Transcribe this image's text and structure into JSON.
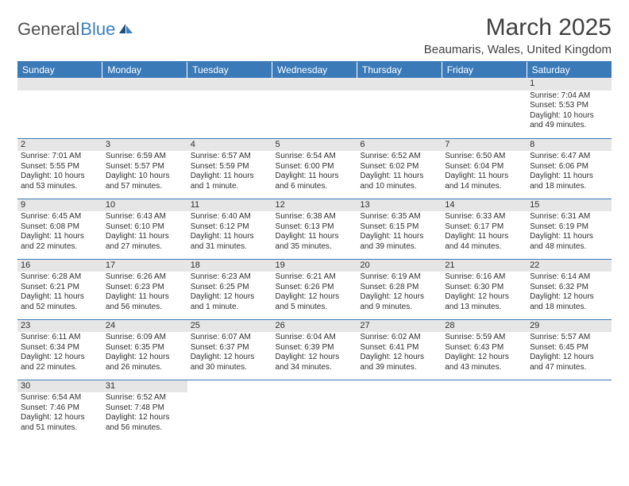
{
  "logo": {
    "part1": "General",
    "part2": "Blue"
  },
  "title": "March 2025",
  "location": "Beaumaris, Wales, United Kingdom",
  "colors": {
    "header_bg": "#3a7ab8",
    "header_text": "#ffffff",
    "daynum_bg": "#e6e6e6",
    "text": "#303030",
    "rule": "#3a7ab8",
    "logo_gray": "#505050",
    "logo_blue": "#3b7fbf"
  },
  "weekdays": [
    "Sunday",
    "Monday",
    "Tuesday",
    "Wednesday",
    "Thursday",
    "Friday",
    "Saturday"
  ],
  "weeks": [
    [
      null,
      null,
      null,
      null,
      null,
      null,
      {
        "d": "1",
        "sr": "7:04 AM",
        "ss": "5:53 PM",
        "dl1": "10 hours",
        "dl2": "and 49 minutes."
      }
    ],
    [
      {
        "d": "2",
        "sr": "7:01 AM",
        "ss": "5:55 PM",
        "dl1": "10 hours",
        "dl2": "and 53 minutes."
      },
      {
        "d": "3",
        "sr": "6:59 AM",
        "ss": "5:57 PM",
        "dl1": "10 hours",
        "dl2": "and 57 minutes."
      },
      {
        "d": "4",
        "sr": "6:57 AM",
        "ss": "5:59 PM",
        "dl1": "11 hours",
        "dl2": "and 1 minute."
      },
      {
        "d": "5",
        "sr": "6:54 AM",
        "ss": "6:00 PM",
        "dl1": "11 hours",
        "dl2": "and 6 minutes."
      },
      {
        "d": "6",
        "sr": "6:52 AM",
        "ss": "6:02 PM",
        "dl1": "11 hours",
        "dl2": "and 10 minutes."
      },
      {
        "d": "7",
        "sr": "6:50 AM",
        "ss": "6:04 PM",
        "dl1": "11 hours",
        "dl2": "and 14 minutes."
      },
      {
        "d": "8",
        "sr": "6:47 AM",
        "ss": "6:06 PM",
        "dl1": "11 hours",
        "dl2": "and 18 minutes."
      }
    ],
    [
      {
        "d": "9",
        "sr": "6:45 AM",
        "ss": "6:08 PM",
        "dl1": "11 hours",
        "dl2": "and 22 minutes."
      },
      {
        "d": "10",
        "sr": "6:43 AM",
        "ss": "6:10 PM",
        "dl1": "11 hours",
        "dl2": "and 27 minutes."
      },
      {
        "d": "11",
        "sr": "6:40 AM",
        "ss": "6:12 PM",
        "dl1": "11 hours",
        "dl2": "and 31 minutes."
      },
      {
        "d": "12",
        "sr": "6:38 AM",
        "ss": "6:13 PM",
        "dl1": "11 hours",
        "dl2": "and 35 minutes."
      },
      {
        "d": "13",
        "sr": "6:35 AM",
        "ss": "6:15 PM",
        "dl1": "11 hours",
        "dl2": "and 39 minutes."
      },
      {
        "d": "14",
        "sr": "6:33 AM",
        "ss": "6:17 PM",
        "dl1": "11 hours",
        "dl2": "and 44 minutes."
      },
      {
        "d": "15",
        "sr": "6:31 AM",
        "ss": "6:19 PM",
        "dl1": "11 hours",
        "dl2": "and 48 minutes."
      }
    ],
    [
      {
        "d": "16",
        "sr": "6:28 AM",
        "ss": "6:21 PM",
        "dl1": "11 hours",
        "dl2": "and 52 minutes."
      },
      {
        "d": "17",
        "sr": "6:26 AM",
        "ss": "6:23 PM",
        "dl1": "11 hours",
        "dl2": "and 56 minutes."
      },
      {
        "d": "18",
        "sr": "6:23 AM",
        "ss": "6:25 PM",
        "dl1": "12 hours",
        "dl2": "and 1 minute."
      },
      {
        "d": "19",
        "sr": "6:21 AM",
        "ss": "6:26 PM",
        "dl1": "12 hours",
        "dl2": "and 5 minutes."
      },
      {
        "d": "20",
        "sr": "6:19 AM",
        "ss": "6:28 PM",
        "dl1": "12 hours",
        "dl2": "and 9 minutes."
      },
      {
        "d": "21",
        "sr": "6:16 AM",
        "ss": "6:30 PM",
        "dl1": "12 hours",
        "dl2": "and 13 minutes."
      },
      {
        "d": "22",
        "sr": "6:14 AM",
        "ss": "6:32 PM",
        "dl1": "12 hours",
        "dl2": "and 18 minutes."
      }
    ],
    [
      {
        "d": "23",
        "sr": "6:11 AM",
        "ss": "6:34 PM",
        "dl1": "12 hours",
        "dl2": "and 22 minutes."
      },
      {
        "d": "24",
        "sr": "6:09 AM",
        "ss": "6:35 PM",
        "dl1": "12 hours",
        "dl2": "and 26 minutes."
      },
      {
        "d": "25",
        "sr": "6:07 AM",
        "ss": "6:37 PM",
        "dl1": "12 hours",
        "dl2": "and 30 minutes."
      },
      {
        "d": "26",
        "sr": "6:04 AM",
        "ss": "6:39 PM",
        "dl1": "12 hours",
        "dl2": "and 34 minutes."
      },
      {
        "d": "27",
        "sr": "6:02 AM",
        "ss": "6:41 PM",
        "dl1": "12 hours",
        "dl2": "and 39 minutes."
      },
      {
        "d": "28",
        "sr": "5:59 AM",
        "ss": "6:43 PM",
        "dl1": "12 hours",
        "dl2": "and 43 minutes."
      },
      {
        "d": "29",
        "sr": "5:57 AM",
        "ss": "6:45 PM",
        "dl1": "12 hours",
        "dl2": "and 47 minutes."
      }
    ],
    [
      {
        "d": "30",
        "sr": "6:54 AM",
        "ss": "7:46 PM",
        "dl1": "12 hours",
        "dl2": "and 51 minutes."
      },
      {
        "d": "31",
        "sr": "6:52 AM",
        "ss": "7:48 PM",
        "dl1": "12 hours",
        "dl2": "and 56 minutes."
      },
      null,
      null,
      null,
      null,
      null
    ]
  ],
  "labels": {
    "sunrise": "Sunrise:",
    "sunset": "Sunset:",
    "daylight": "Daylight:"
  }
}
